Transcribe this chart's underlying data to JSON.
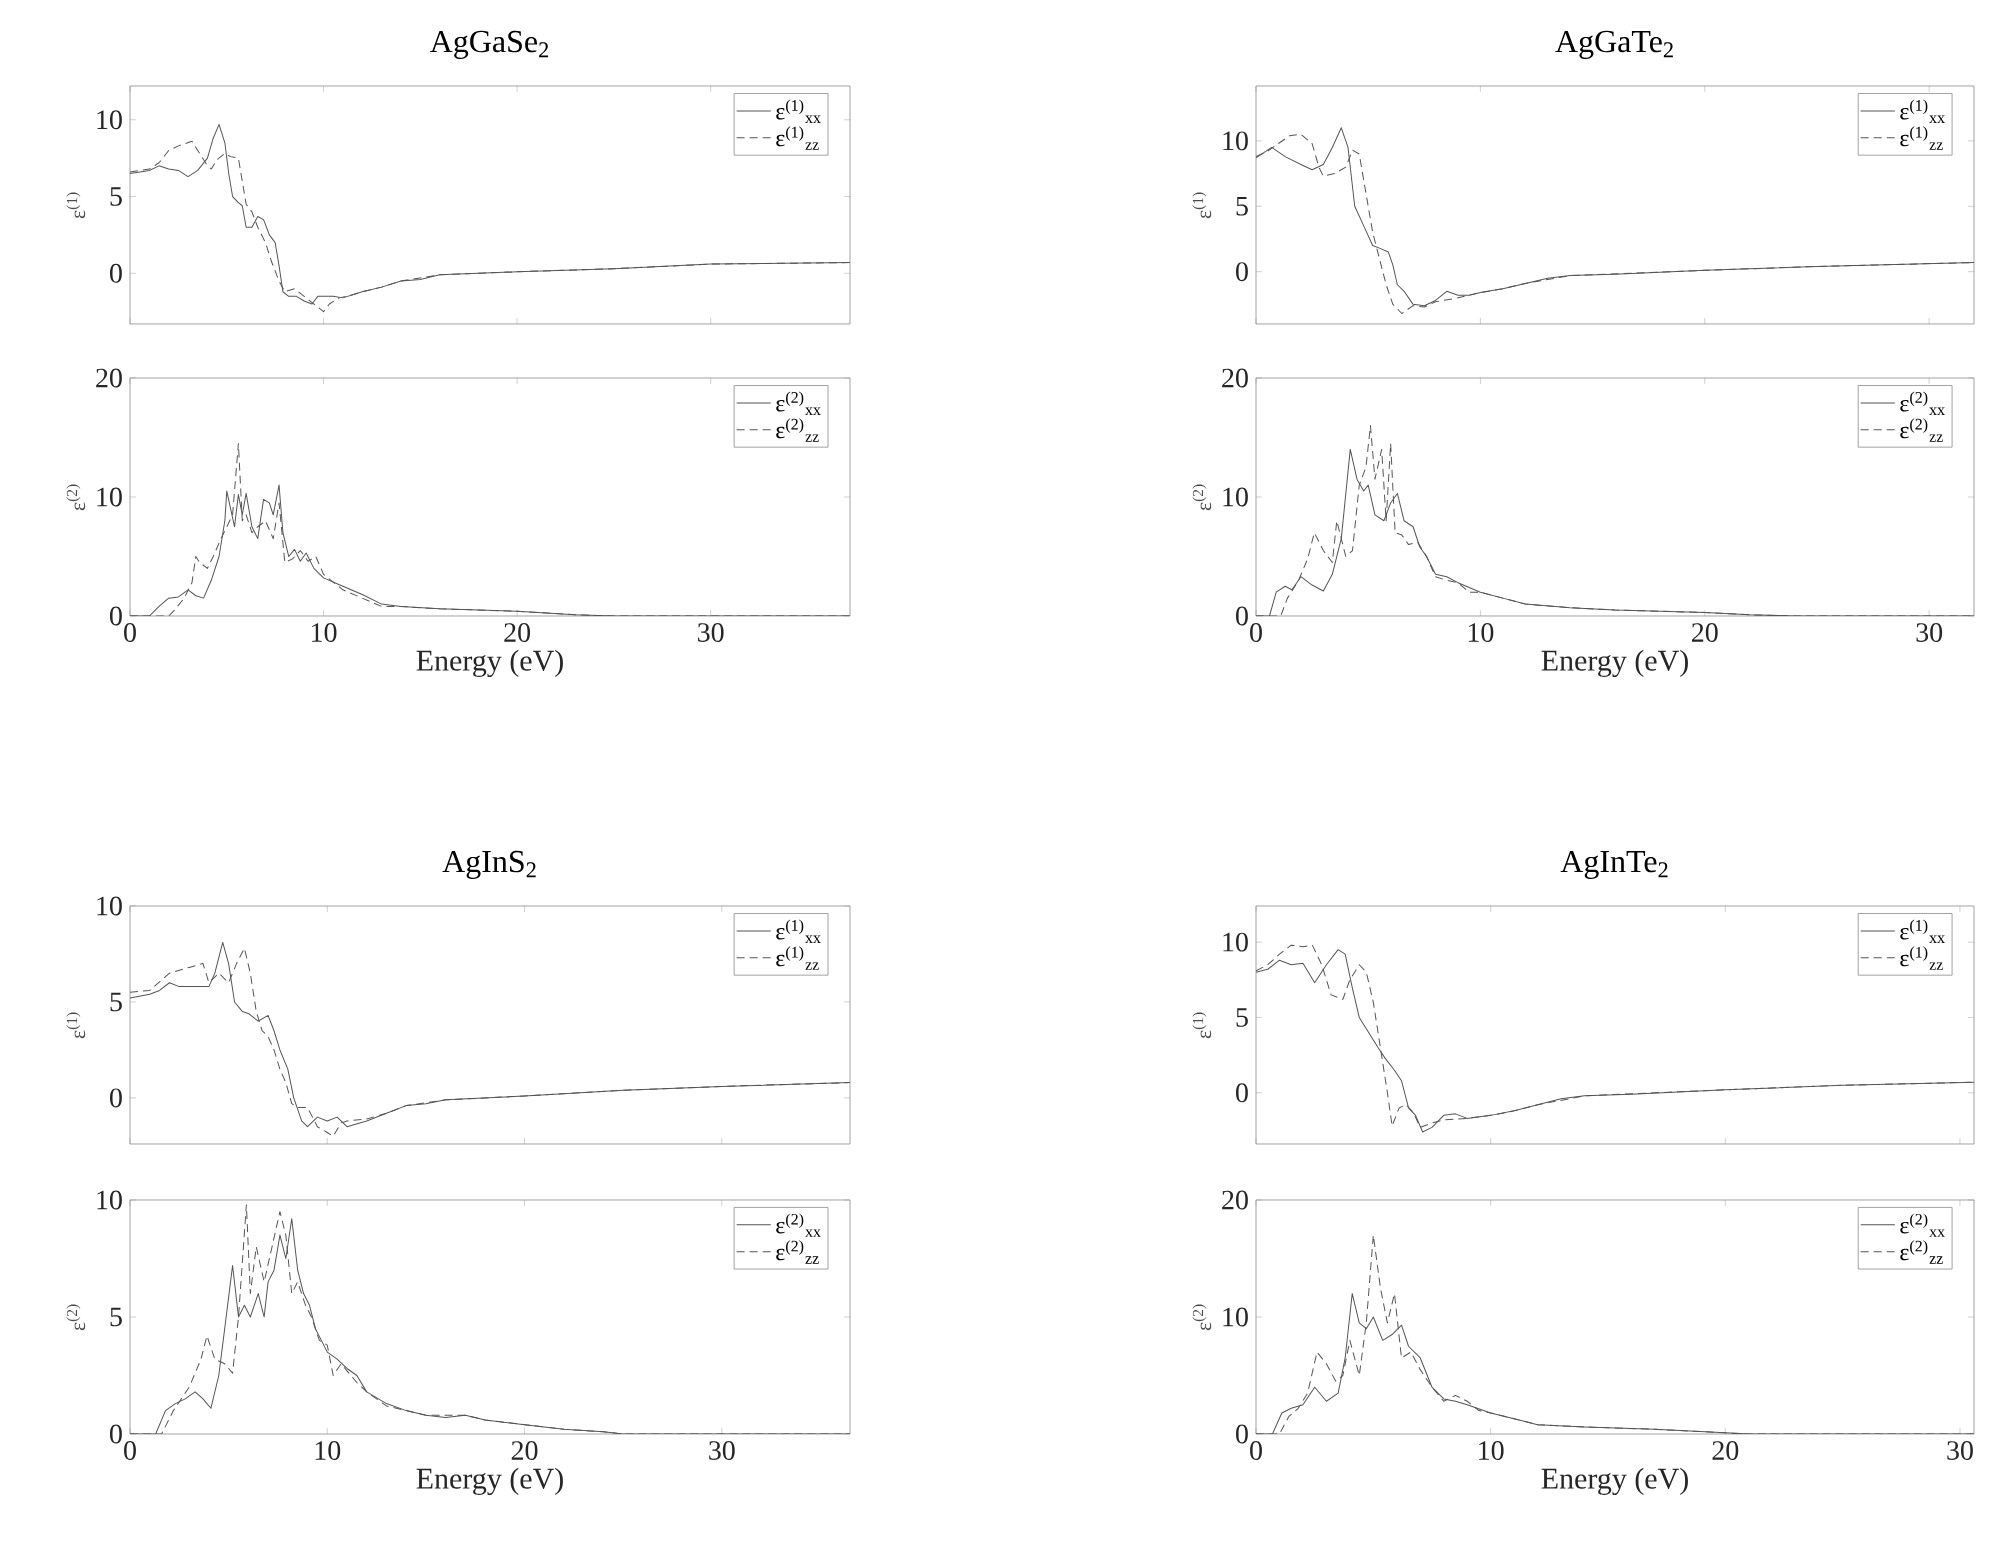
{
  "chart_data": [
    {
      "type": "line",
      "title": "AgGaSe$_{2}$",
      "ylabel": "ε$^{(1)}$",
      "xlim": [
        0,
        37.2
      ],
      "ylim": [
        -3.3,
        12.2
      ],
      "xticks": [
        0,
        10,
        20,
        30
      ],
      "yticks": [
        0,
        5,
        10
      ],
      "tick_labels": "y",
      "legend": "top right",
      "series": [
        {
          "name": "ε$^{(1)}$$_{xx}$",
          "color": "#555555",
          "line_style": "solid",
          "x": [
            0,
            1,
            1.5,
            2,
            2.5,
            3,
            3.5,
            4,
            4.3,
            4.6,
            4.9,
            5.1,
            5.3,
            5.6,
            5.8,
            6,
            6.3,
            6.6,
            6.9,
            7.2,
            7.5,
            7.7,
            7.9,
            8.2,
            8.6,
            9,
            9.4,
            9.7,
            10,
            10.5,
            11,
            12,
            13,
            14,
            15,
            16,
            18,
            20,
            25,
            30,
            37.2
          ],
          "values": [
            6.5,
            6.7,
            7.0,
            6.8,
            6.7,
            6.3,
            6.7,
            7.5,
            8.8,
            9.7,
            8.5,
            6.5,
            5.0,
            4.6,
            4.4,
            3.0,
            3.0,
            3.7,
            3.5,
            2.5,
            2.0,
            0.5,
            -1.2,
            -1.5,
            -1.5,
            -1.8,
            -2.0,
            -1.5,
            -1.5,
            -1.5,
            -1.6,
            -1.2,
            -0.9,
            -0.5,
            -0.4,
            -0.1,
            0.0,
            0.1,
            0.3,
            0.6,
            0.7
          ]
        },
        {
          "name": "ε$^{(1)}$$_{zz}$",
          "color": "#555555",
          "line_style": "dashed",
          "x": [
            0,
            1,
            1.5,
            2,
            2.5,
            3.2,
            3.5,
            4,
            4.2,
            4.5,
            4.9,
            5.2,
            5.6,
            5.8,
            6,
            6.3,
            6.6,
            7,
            7.3,
            7.7,
            8,
            8.5,
            9,
            9.5,
            10,
            10.3,
            10.8,
            11.5,
            12,
            13,
            14,
            16,
            20,
            25,
            30,
            37.2
          ],
          "values": [
            6.6,
            6.8,
            7.2,
            8.0,
            8.3,
            8.6,
            8.0,
            7.0,
            6.8,
            7.4,
            7.8,
            7.6,
            7.5,
            6.0,
            4.5,
            4.0,
            3.0,
            2.0,
            0.8,
            -0.5,
            -1.2,
            -1.0,
            -1.5,
            -2.0,
            -2.5,
            -2.0,
            -1.6,
            -1.4,
            -1.2,
            -0.9,
            -0.5,
            -0.1,
            0.1,
            0.3,
            0.6,
            0.7
          ]
        }
      ]
    },
    {
      "type": "line",
      "xlabel": "Energy (eV)",
      "ylabel": "ε$^{(2)}$",
      "xlim": [
        0,
        37.2
      ],
      "ylim": [
        0,
        20
      ],
      "xticks": [
        0,
        10,
        20,
        30
      ],
      "yticks": [
        0,
        10,
        20
      ],
      "legend": "top right",
      "series": [
        {
          "name": "ε$^{(2)}$$_{xx}$",
          "color": "#555555",
          "line_style": "solid",
          "x": [
            0,
            1.0,
            1.5,
            2,
            2.5,
            3.0,
            3.4,
            3.8,
            4.2,
            4.6,
            4.9,
            5.0,
            5.2,
            5.4,
            5.6,
            5.8,
            6.0,
            6.3,
            6.6,
            6.9,
            7.2,
            7.4,
            7.7,
            7.9,
            8.2,
            8.5,
            8.8,
            9.1,
            9.5,
            10,
            11,
            12,
            13,
            14,
            16,
            20,
            23,
            25,
            37.2
          ],
          "values": [
            0,
            0,
            0.8,
            1.5,
            1.6,
            2.2,
            1.7,
            1.5,
            3,
            5,
            8,
            10.5,
            9.0,
            7.5,
            10.2,
            8.5,
            10.3,
            7.5,
            6.5,
            9.8,
            9.5,
            8.5,
            11.0,
            7.0,
            5.0,
            5.6,
            4.6,
            5.3,
            4.0,
            3.2,
            2.5,
            1.8,
            1.0,
            0.8,
            0.6,
            0.4,
            0.1,
            0,
            0
          ]
        },
        {
          "name": "ε$^{(2)}$$_{zz}$",
          "color": "#555555",
          "line_style": "dashed",
          "x": [
            0,
            2.0,
            2.3,
            2.8,
            3.2,
            3.4,
            3.6,
            4.0,
            4.3,
            4.7,
            5.0,
            5.3,
            5.6,
            5.8,
            6.0,
            6.3,
            6.6,
            7.0,
            7.4,
            7.7,
            8.0,
            8.4,
            8.8,
            9.2,
            9.6,
            10,
            11,
            12,
            13,
            14,
            16,
            20,
            23,
            25,
            37.2
          ],
          "values": [
            0,
            0,
            0.5,
            1.5,
            2.8,
            5.0,
            4.5,
            4.0,
            5.0,
            6.5,
            7.5,
            8.5,
            14.5,
            8.0,
            8.5,
            7.0,
            7.5,
            8.0,
            6.5,
            9.5,
            4.5,
            4.8,
            5.5,
            4.6,
            5.0,
            3.5,
            2.2,
            1.5,
            0.8,
            0.8,
            0.6,
            0.4,
            0.1,
            0,
            0
          ]
        }
      ]
    },
    {
      "type": "line",
      "title": "AgGaTe$_{2}$",
      "ylabel": "ε$^{(1)}$",
      "xlim": [
        0,
        32
      ],
      "ylim": [
        -4,
        14.2
      ],
      "xticks": [
        0,
        10,
        20,
        30
      ],
      "yticks": [
        0,
        5,
        10
      ],
      "tick_labels": "y",
      "legend": "top right",
      "series": [
        {
          "name": "ε$^{(1)}$$_{xx}$",
          "color": "#555555",
          "line_style": "solid",
          "x": [
            0,
            0.7,
            1.3,
            2,
            2.5,
            3,
            3.4,
            3.8,
            4.1,
            4.4,
            4.8,
            5.2,
            5.5,
            5.9,
            6.1,
            6.3,
            6.6,
            7.0,
            7.5,
            8.0,
            8.5,
            9.0,
            9.5,
            10,
            11,
            12,
            13,
            14,
            16,
            20,
            25,
            32
          ],
          "values": [
            8.7,
            9.5,
            8.8,
            8.2,
            7.8,
            8.2,
            9.5,
            11.0,
            9.5,
            5.0,
            3.5,
            2.0,
            1.8,
            1.5,
            0.5,
            -1.0,
            -1.5,
            -2.5,
            -2.6,
            -2.2,
            -1.5,
            -1.8,
            -1.8,
            -1.6,
            -1.3,
            -0.9,
            -0.5,
            -0.3,
            -0.2,
            0.1,
            0.4,
            0.7
          ]
        },
        {
          "name": "ε$^{(1)}$$_{zz}$",
          "color": "#555555",
          "line_style": "dashed",
          "x": [
            0,
            0.5,
            1.0,
            1.5,
            2,
            2.5,
            2.8,
            3.0,
            3.5,
            4.0,
            4.3,
            4.6,
            4.9,
            5.2,
            5.5,
            5.8,
            6.1,
            6.5,
            7.0,
            7.5,
            8,
            9,
            10,
            11,
            12,
            14,
            20,
            25,
            32
          ],
          "values": [
            8.8,
            9.2,
            9.8,
            10.4,
            10.5,
            9.8,
            8.0,
            7.3,
            7.5,
            8.0,
            9.3,
            9.0,
            6.0,
            3.0,
            1.0,
            -1.0,
            -2.5,
            -3.2,
            -2.6,
            -2.7,
            -2.3,
            -2.0,
            -1.6,
            -1.3,
            -0.9,
            -0.3,
            0.1,
            0.4,
            0.7
          ]
        }
      ]
    },
    {
      "type": "line",
      "xlabel": "Energy (eV)",
      "ylabel": "ε$^{(2)}$",
      "xlim": [
        0,
        32
      ],
      "ylim": [
        0,
        20
      ],
      "xticks": [
        0,
        10,
        20,
        30
      ],
      "yticks": [
        0,
        10,
        20
      ],
      "legend": "top right",
      "series": [
        {
          "name": "ε$^{(2)}$$_{xx}$",
          "color": "#555555",
          "line_style": "solid",
          "x": [
            0,
            0.6,
            0.9,
            1.3,
            1.6,
            2.0,
            2.5,
            3.0,
            3.4,
            3.8,
            4.2,
            4.5,
            4.8,
            5.0,
            5.3,
            5.7,
            6.0,
            6.3,
            6.6,
            7.0,
            7.3,
            7.6,
            8.0,
            8.5,
            9,
            10,
            11,
            12,
            14,
            16,
            20,
            22,
            24,
            32
          ],
          "values": [
            0,
            0,
            2.0,
            2.5,
            2.2,
            3.3,
            2.6,
            2.1,
            3.5,
            6.5,
            14.0,
            11.5,
            10.5,
            11.0,
            8.5,
            8.0,
            9.5,
            10.3,
            8.0,
            7.5,
            5.8,
            5.0,
            3.5,
            3.3,
            2.8,
            2.0,
            1.5,
            1.0,
            0.7,
            0.5,
            0.3,
            0.1,
            0,
            0
          ]
        },
        {
          "name": "ε$^{(2)}$$_{zz}$",
          "color": "#555555",
          "line_style": "dashed",
          "x": [
            0,
            1.1,
            1.4,
            1.9,
            2.3,
            2.6,
            3.0,
            3.4,
            3.6,
            4.0,
            4.3,
            4.6,
            4.9,
            5.1,
            5.3,
            5.6,
            5.8,
            6.0,
            6.2,
            6.5,
            6.8,
            7.2,
            7.6,
            8.0,
            8.5,
            9,
            9.5,
            10,
            11,
            12,
            14,
            16,
            20,
            22,
            24,
            32
          ],
          "values": [
            0,
            0,
            1.5,
            3.0,
            4.8,
            7.0,
            5.5,
            4.5,
            8.0,
            5.0,
            5.5,
            11.0,
            12.5,
            16.0,
            11.5,
            14.0,
            8.0,
            14.5,
            7.0,
            6.8,
            6.0,
            6.2,
            5.0,
            3.3,
            3.0,
            2.8,
            2.0,
            2.0,
            1.5,
            1.0,
            0.7,
            0.5,
            0.3,
            0.1,
            0,
            0
          ]
        }
      ]
    },
    {
      "type": "line",
      "title": "AgInS$_{2}$",
      "ylabel": "ε$^{(1)}$",
      "xlim": [
        0,
        36.5
      ],
      "ylim": [
        -2.4,
        10
      ],
      "xticks": [
        0,
        10,
        20,
        30
      ],
      "yticks": [
        0,
        5,
        10
      ],
      "tick_labels": "y",
      "legend": "top right",
      "series": [
        {
          "name": "ε$^{(1)}$$_{xx}$",
          "color": "#555555",
          "line_style": "solid",
          "x": [
            0,
            1,
            1.5,
            2,
            2.5,
            3,
            3.5,
            4,
            4.3,
            4.7,
            5.0,
            5.3,
            5.7,
            6,
            6.5,
            7,
            7.3,
            7.6,
            8.0,
            8.3,
            8.7,
            9.0,
            9.5,
            10,
            10.5,
            11,
            12,
            13,
            14,
            15,
            16,
            18,
            20,
            25,
            30,
            36.5
          ],
          "values": [
            5.2,
            5.4,
            5.6,
            6.0,
            5.8,
            5.8,
            5.8,
            5.8,
            6.5,
            8.1,
            7.0,
            5.0,
            4.5,
            4.4,
            4.0,
            4.3,
            3.5,
            2.5,
            1.5,
            0,
            -1.2,
            -1.5,
            -1.0,
            -1.2,
            -1.0,
            -1.5,
            -1.2,
            -0.8,
            -0.4,
            -0.3,
            -0.1,
            0.0,
            0.1,
            0.4,
            0.6,
            0.8
          ]
        },
        {
          "name": "ε$^{(1)}$$_{zz}$",
          "color": "#555555",
          "line_style": "dashed",
          "x": [
            0,
            1,
            2,
            3,
            3.7,
            4.0,
            4.5,
            5.0,
            5.4,
            5.8,
            6.1,
            6.4,
            6.7,
            7.0,
            7.3,
            7.6,
            7.9,
            8.2,
            8.5,
            9,
            9.5,
            10,
            10.3,
            10.7,
            11,
            12,
            13,
            14,
            16,
            20,
            25,
            30,
            36.5
          ],
          "values": [
            5.5,
            5.6,
            6.5,
            6.8,
            7.0,
            6.0,
            6.5,
            6.0,
            7.0,
            7.8,
            6.5,
            4.5,
            3.5,
            3.2,
            2.5,
            1.5,
            0.8,
            -0.3,
            -0.5,
            -0.5,
            -1.5,
            -1.8,
            -2.0,
            -1.3,
            -1.2,
            -1.1,
            -0.8,
            -0.4,
            -0.1,
            0.1,
            0.4,
            0.6,
            0.8
          ]
        }
      ]
    },
    {
      "type": "line",
      "xlabel": "Energy (eV)",
      "ylabel": "ε$^{(2)}$",
      "xlim": [
        0,
        36.5
      ],
      "ylim": [
        0,
        10
      ],
      "xticks": [
        0,
        10,
        20,
        30
      ],
      "yticks": [
        0,
        5,
        10
      ],
      "legend": "top right",
      "series": [
        {
          "name": "ε$^{(2)}$$_{xx}$",
          "color": "#555555",
          "line_style": "solid",
          "x": [
            0,
            1.3,
            1.8,
            2.3,
            2.8,
            3.3,
            3.7,
            4.1,
            4.5,
            4.8,
            5.2,
            5.5,
            5.8,
            6.1,
            6.5,
            6.8,
            7.0,
            7.3,
            7.6,
            7.9,
            8.2,
            8.5,
            8.8,
            9.1,
            9.4,
            9.7,
            10,
            10.5,
            11,
            11.5,
            12,
            13,
            14,
            15,
            16,
            17,
            18,
            20,
            22,
            24,
            25,
            36.5
          ],
          "values": [
            0,
            0,
            1.0,
            1.3,
            1.5,
            1.8,
            1.5,
            1.1,
            2.5,
            4.5,
            7.2,
            5.0,
            5.5,
            5.0,
            6.0,
            5.0,
            6.5,
            7.0,
            8.5,
            7.5,
            9.2,
            7.0,
            6.0,
            5.5,
            4.5,
            4.0,
            3.5,
            3.2,
            2.8,
            2.5,
            1.8,
            1.3,
            1.0,
            0.8,
            0.7,
            0.8,
            0.6,
            0.4,
            0.2,
            0.1,
            0,
            0
          ]
        },
        {
          "name": "ε$^{(2)}$$_{zz}$",
          "color": "#555555",
          "line_style": "dashed",
          "x": [
            0,
            1.6,
            2.2,
            3.0,
            3.6,
            3.9,
            4.3,
            4.8,
            5.2,
            5.5,
            5.9,
            6.1,
            6.4,
            6.8,
            7.2,
            7.6,
            7.9,
            8.2,
            8.5,
            8.9,
            9.2,
            9.6,
            10,
            10.3,
            10.7,
            11,
            11.5,
            12,
            13,
            14,
            15,
            17,
            18,
            20,
            22,
            24,
            25,
            36.5
          ],
          "values": [
            0,
            0,
            1.0,
            2.0,
            3.2,
            4.2,
            3.2,
            3.0,
            2.6,
            5.0,
            9.8,
            6.0,
            8.0,
            6.5,
            8.0,
            9.5,
            8.5,
            6.0,
            6.5,
            5.5,
            5.0,
            4.0,
            3.8,
            2.5,
            3.0,
            2.7,
            2.2,
            1.8,
            1.2,
            1.0,
            0.8,
            0.8,
            0.6,
            0.4,
            0.2,
            0.1,
            0,
            0
          ]
        }
      ]
    },
    {
      "type": "line",
      "title": "AgInTe$_{2}$",
      "ylabel": "ε$^{(1)}$",
      "xlim": [
        0,
        30.6
      ],
      "ylim": [
        -3.4,
        12.4
      ],
      "xticks": [
        0,
        10,
        20,
        30
      ],
      "yticks": [
        0,
        5,
        10
      ],
      "tick_labels": "y",
      "legend": "top right",
      "series": [
        {
          "name": "ε$^{(1)}$$_{xx}$",
          "color": "#555555",
          "line_style": "solid",
          "x": [
            0,
            0.5,
            1.0,
            1.5,
            2.0,
            2.5,
            3.0,
            3.5,
            3.8,
            4.1,
            4.4,
            4.8,
            5.2,
            5.5,
            5.9,
            6.2,
            6.5,
            6.8,
            7.1,
            7.5,
            8.0,
            8.5,
            9.0,
            10,
            11,
            12,
            13,
            14,
            16,
            20,
            25,
            30.6
          ],
          "values": [
            8.0,
            8.2,
            8.8,
            8.5,
            8.6,
            7.3,
            8.5,
            9.5,
            9.2,
            7.0,
            5.0,
            4.0,
            3.0,
            2.3,
            1.5,
            0.8,
            -1.0,
            -1.5,
            -2.6,
            -2.3,
            -1.5,
            -1.4,
            -1.7,
            -1.5,
            -1.2,
            -0.8,
            -0.4,
            -0.2,
            -0.1,
            0.2,
            0.5,
            0.7
          ]
        },
        {
          "name": "ε$^{(1)}$$_{zz}$",
          "color": "#555555",
          "line_style": "dashed",
          "x": [
            0,
            0.5,
            1.0,
            1.5,
            2.0,
            2.4,
            2.8,
            3.2,
            3.7,
            4.0,
            4.4,
            4.7,
            5.0,
            5.3,
            5.6,
            5.8,
            6.1,
            6.4,
            6.7,
            7.0,
            7.5,
            8.0,
            9,
            10,
            11,
            12,
            14,
            20,
            25,
            30.6
          ],
          "values": [
            8.1,
            8.5,
            9.2,
            9.8,
            9.7,
            9.8,
            8.5,
            6.5,
            6.2,
            7.5,
            8.5,
            8.0,
            6.0,
            3.0,
            0,
            -2.2,
            -1.0,
            -0.8,
            -1.3,
            -2.3,
            -2.0,
            -1.8,
            -1.7,
            -1.5,
            -1.2,
            -0.8,
            -0.2,
            0.2,
            0.5,
            0.7
          ]
        }
      ]
    },
    {
      "type": "line",
      "xlabel": "Energy (eV)",
      "ylabel": "ε$^{(2)}$",
      "xlim": [
        0,
        30.6
      ],
      "ylim": [
        0,
        20
      ],
      "xticks": [
        0,
        10,
        20,
        30
      ],
      "yticks": [
        0,
        10,
        20
      ],
      "legend": "top right",
      "series": [
        {
          "name": "ε$^{(2)}$$_{xx}$",
          "color": "#555555",
          "line_style": "solid",
          "x": [
            0,
            0.7,
            1.1,
            1.5,
            2.0,
            2.5,
            3.0,
            3.5,
            3.8,
            4.1,
            4.4,
            4.7,
            5.0,
            5.4,
            5.8,
            6.2,
            6.5,
            7.0,
            7.5,
            8.0,
            8.5,
            9,
            10,
            11,
            12,
            14,
            17,
            20,
            21,
            30.6
          ],
          "values": [
            0,
            0,
            1.8,
            2.2,
            2.5,
            4.0,
            2.8,
            3.5,
            6.5,
            12.0,
            9.5,
            9.0,
            10.0,
            8.0,
            8.5,
            9.3,
            7.5,
            6.5,
            4.0,
            3.0,
            2.8,
            2.5,
            1.8,
            1.3,
            0.8,
            0.6,
            0.4,
            0.1,
            0,
            0
          ]
        },
        {
          "name": "ε$^{(2)}$$_{zz}$",
          "color": "#555555",
          "line_style": "dashed",
          "x": [
            0,
            1.0,
            1.4,
            1.8,
            2.2,
            2.6,
            3.0,
            3.4,
            3.7,
            4.0,
            4.4,
            4.7,
            5.0,
            5.3,
            5.6,
            5.9,
            6.2,
            6.6,
            7.0,
            7.5,
            8.0,
            8.5,
            9,
            9.5,
            10,
            11,
            12,
            14,
            17,
            20,
            21,
            30.6
          ],
          "values": [
            0,
            0,
            1.5,
            2.2,
            3.5,
            7.0,
            6.0,
            4.5,
            5.0,
            8.0,
            5.0,
            9.5,
            17.0,
            12.5,
            9.5,
            12.0,
            6.5,
            7.0,
            5.5,
            4.0,
            2.8,
            3.3,
            2.8,
            2.0,
            1.8,
            1.3,
            0.8,
            0.6,
            0.4,
            0.1,
            0,
            0
          ]
        }
      ]
    }
  ]
}
